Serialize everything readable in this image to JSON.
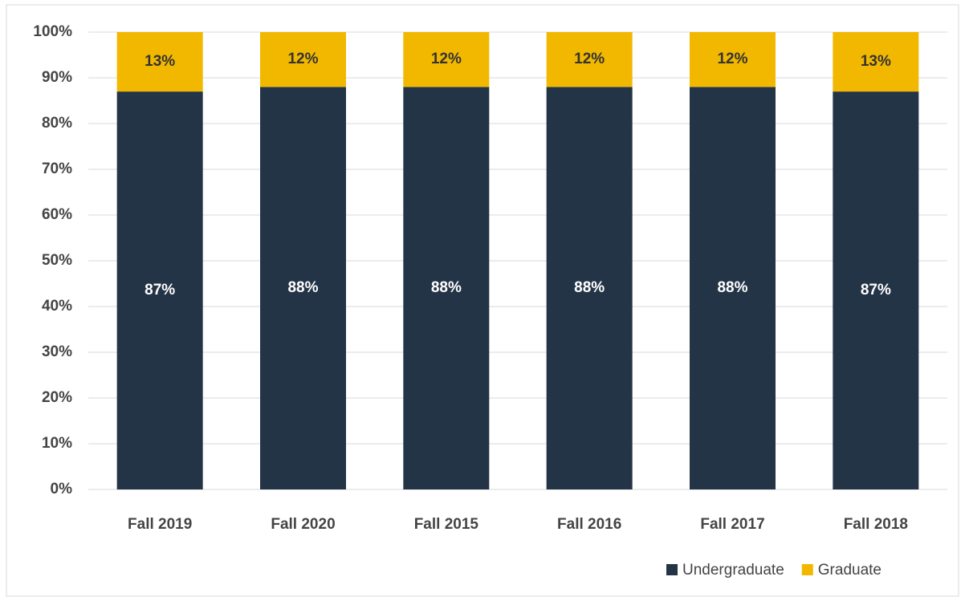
{
  "chart_data": {
    "type": "stacked_bar",
    "categories": [
      "Fall 2019",
      "Fall 2020",
      "Fall 2015",
      "Fall 2016",
      "Fall 2017",
      "Fall 2018"
    ],
    "series": [
      {
        "name": "Undergraduate",
        "color": "#243447",
        "values": [
          87,
          88,
          88,
          88,
          88,
          87
        ],
        "value_labels": [
          "87%",
          "88%",
          "88%",
          "88%",
          "88%",
          "87%"
        ]
      },
      {
        "name": "Graduate",
        "color": "#f2b800",
        "values": [
          13,
          12,
          12,
          12,
          12,
          13
        ],
        "value_labels": [
          "13%",
          "12%",
          "12%",
          "12%",
          "12%",
          "13%"
        ]
      }
    ],
    "ylim": [
      0,
      100
    ],
    "yticks": [
      {
        "value": 0,
        "label": "0%"
      },
      {
        "value": 10,
        "label": "10%"
      },
      {
        "value": 20,
        "label": "20%"
      },
      {
        "value": 30,
        "label": "30%"
      },
      {
        "value": 40,
        "label": "40%"
      },
      {
        "value": 50,
        "label": "50%"
      },
      {
        "value": 60,
        "label": "60%"
      },
      {
        "value": 70,
        "label": "70%"
      },
      {
        "value": 80,
        "label": "80%"
      },
      {
        "value": 90,
        "label": "90%"
      },
      {
        "value": 100,
        "label": "100%"
      }
    ],
    "grid": true,
    "legend": "bottom-right"
  }
}
